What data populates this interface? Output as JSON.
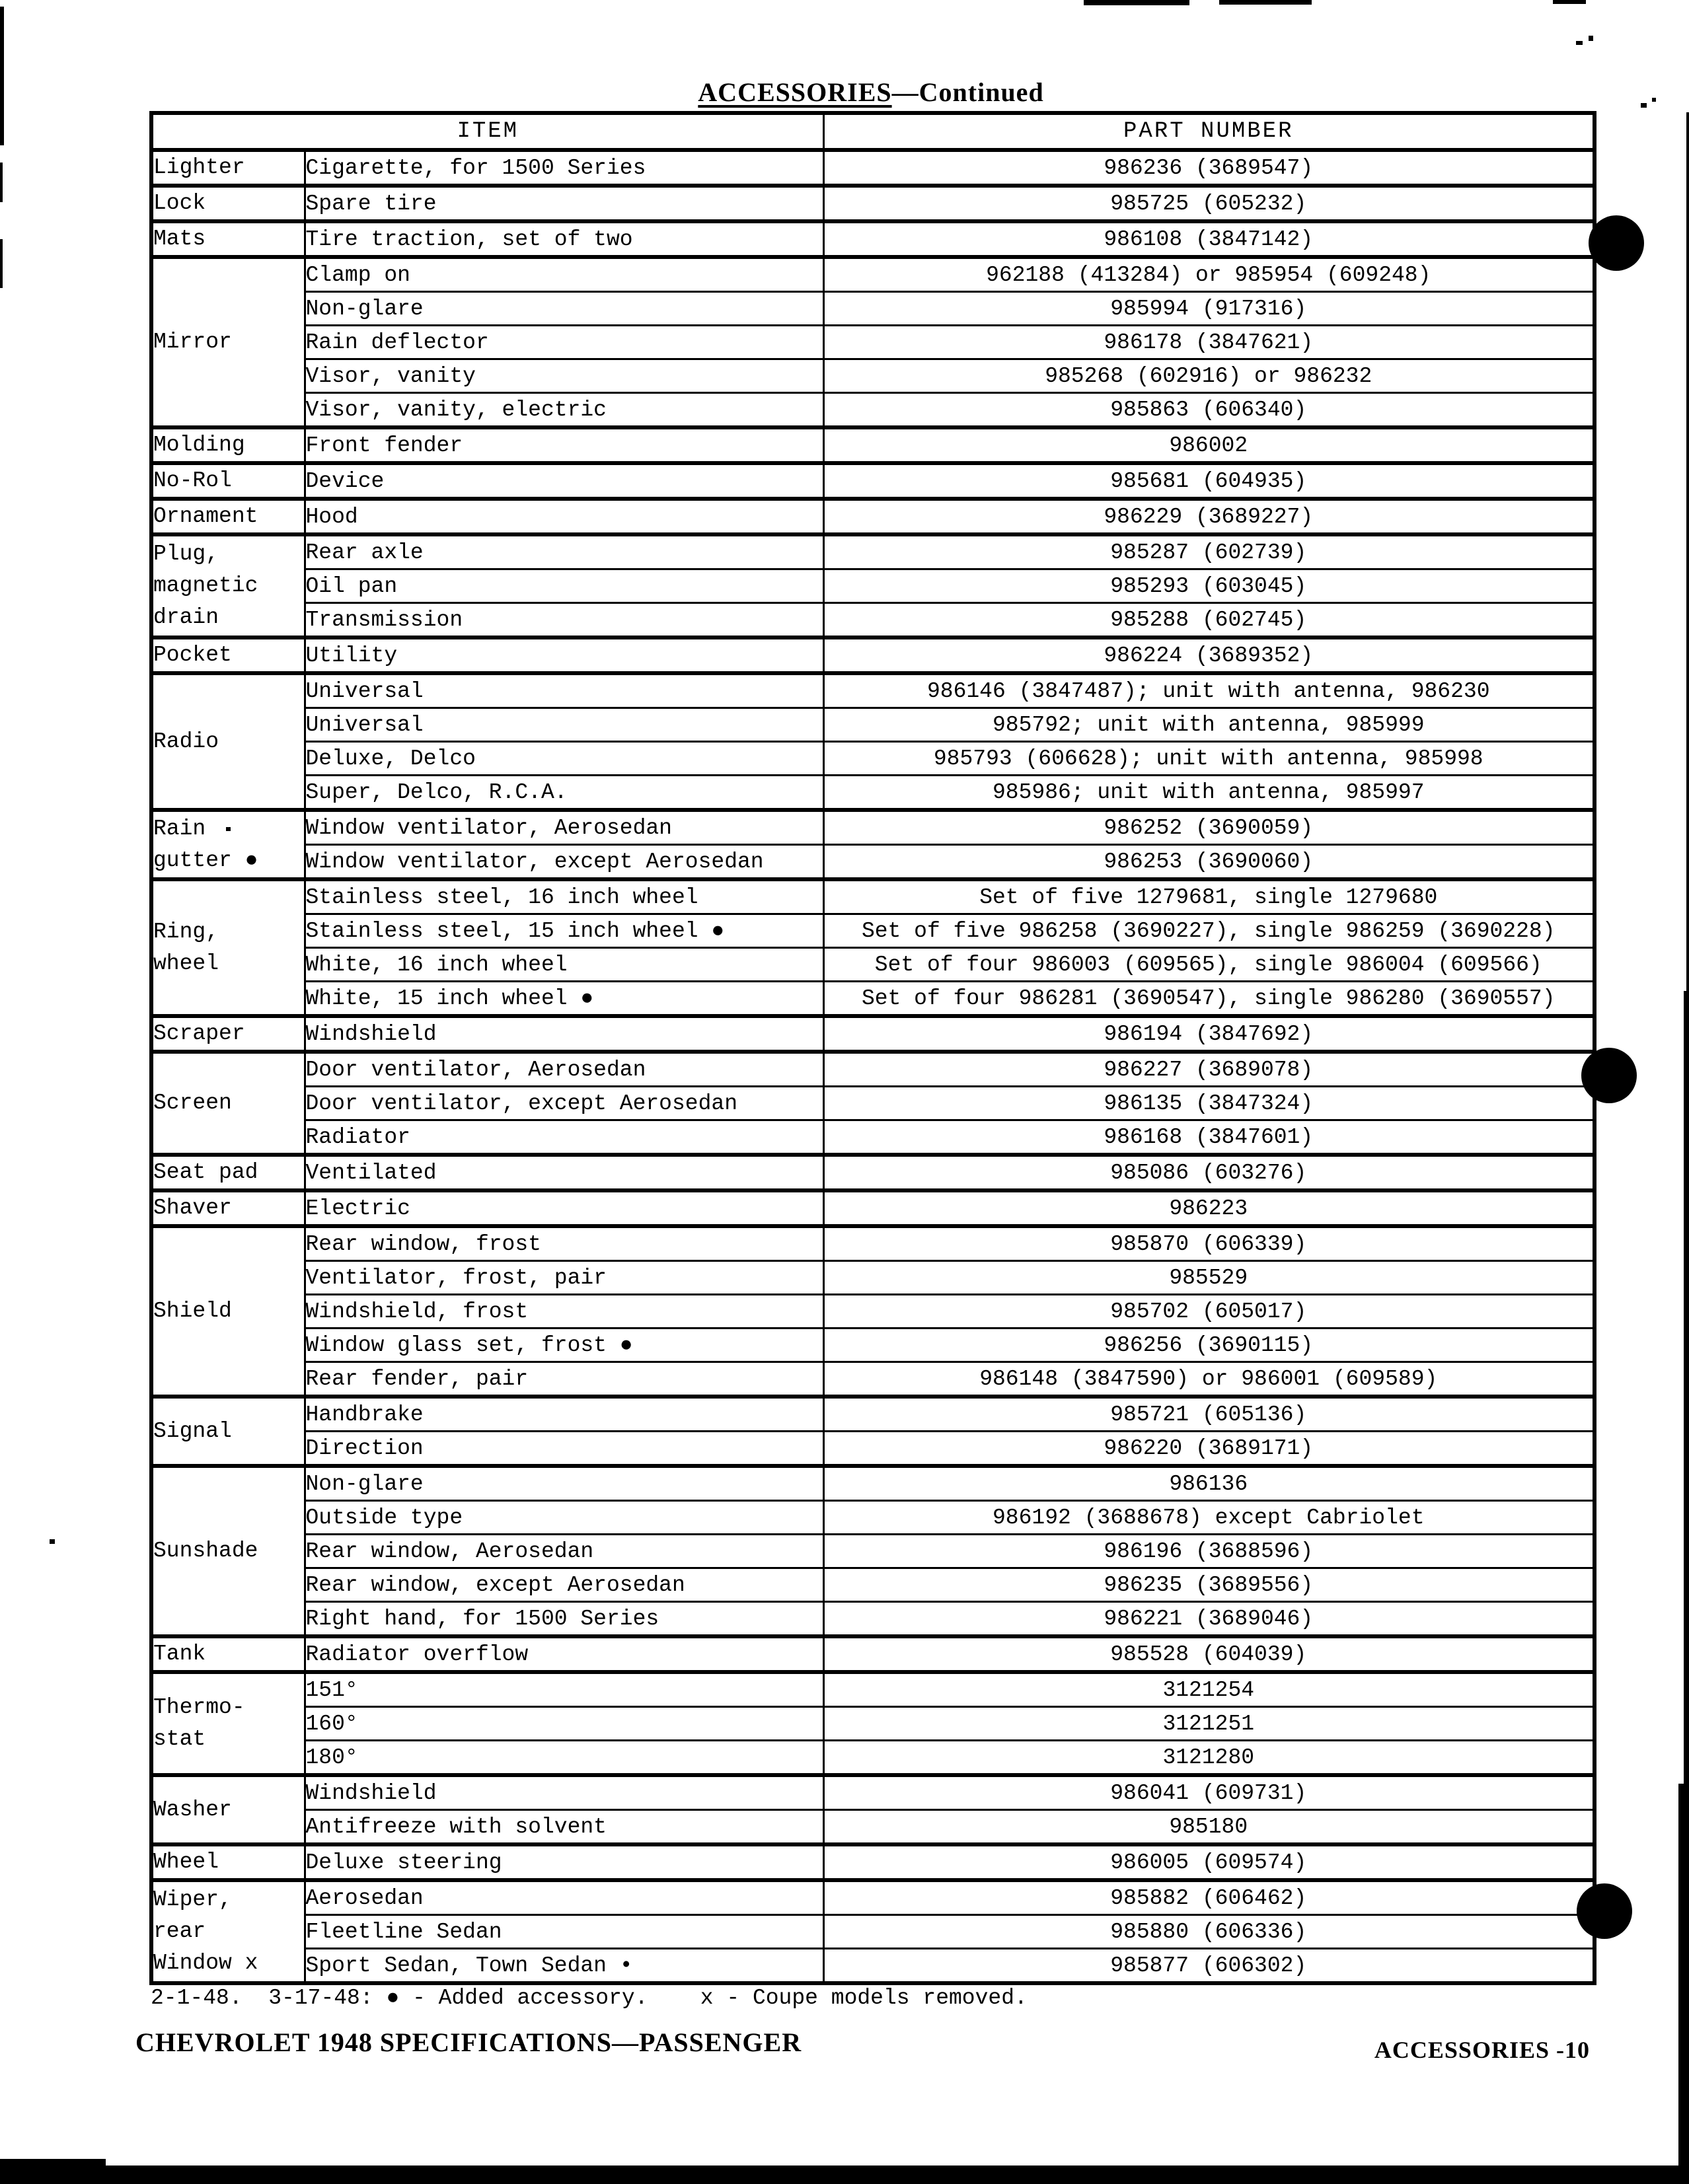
{
  "page": {
    "title_main": "ACCESSORIES",
    "title_suffix": "—Continued",
    "footnote": "2-1-48.  3-17-48: ● - Added accessory.    x - Coupe models removed.",
    "footer_left": "CHEVROLET 1948 SPECIFICATIONS—PASSENGER",
    "footer_right": "ACCESSORIES -10",
    "ink_color": "#000000",
    "paper_color": "#ffffff"
  },
  "table": {
    "headers": [
      "ITEM",
      "PART NUMBER"
    ],
    "groups": [
      {
        "category": [
          "Lighter"
        ],
        "rows": [
          {
            "item": "Cigarette, for 1500 Series",
            "part": "986236 (3689547)"
          }
        ]
      },
      {
        "category": [
          "Lock"
        ],
        "rows": [
          {
            "item": "Spare tire",
            "part": "985725 (605232)"
          }
        ]
      },
      {
        "category": [
          "Mats"
        ],
        "rows": [
          {
            "item": "Tire traction, set of two",
            "part": "986108 (3847142)"
          }
        ]
      },
      {
        "category": [
          "Mirror"
        ],
        "rows": [
          {
            "item": "Clamp on",
            "part": "962188 (413284) or 985954 (609248)"
          },
          {
            "item": "Non-glare",
            "part": "985994 (917316)"
          },
          {
            "item": "Rain deflector",
            "part": "986178 (3847621)"
          },
          {
            "item": "Visor, vanity",
            "part": "985268 (602916) or 986232"
          },
          {
            "item": "Visor, vanity, electric",
            "part": "985863 (606340)"
          }
        ]
      },
      {
        "category": [
          "Molding"
        ],
        "rows": [
          {
            "item": "Front fender",
            "part": "986002"
          }
        ]
      },
      {
        "category": [
          "No-Rol"
        ],
        "rows": [
          {
            "item": "Device",
            "part": "985681 (604935)"
          }
        ]
      },
      {
        "category": [
          "Ornament"
        ],
        "rows": [
          {
            "item": "Hood",
            "part": "986229 (3689227)"
          }
        ]
      },
      {
        "category": [
          "Plug,",
          "magnetic",
          "drain"
        ],
        "rows": [
          {
            "item": "Rear axle",
            "part": "985287 (602739)"
          },
          {
            "item": "Oil pan",
            "part": "985293 (603045)"
          },
          {
            "item": "Transmission",
            "part": "985288 (602745)"
          }
        ]
      },
      {
        "category": [
          "Pocket"
        ],
        "rows": [
          {
            "item": "Utility",
            "part": "986224 (3689352)"
          }
        ]
      },
      {
        "category": [
          "Radio"
        ],
        "rows": [
          {
            "item": "Universal",
            "part": "986146 (3847487); unit with antenna, 986230"
          },
          {
            "item": "Universal",
            "part": "985792; unit with antenna, 985999"
          },
          {
            "item": "Deluxe, Delco",
            "part": "985793 (606628); unit with antenna, 985998"
          },
          {
            "item": "Super, Delco, R.C.A.",
            "part": "985986; unit with antenna, 985997"
          }
        ]
      },
      {
        "category": [
          "Rain",
          "gutter ●"
        ],
        "rows": [
          {
            "item": "Window ventilator, Aerosedan",
            "part": "986252 (3690059)"
          },
          {
            "item": "Window ventilator, except Aerosedan",
            "part": "986253 (3690060)"
          }
        ]
      },
      {
        "category": [
          "Ring,",
          "wheel"
        ],
        "rows": [
          {
            "item": "Stainless steel, 16 inch wheel",
            "part": "Set of five 1279681, single 1279680"
          },
          {
            "item": "Stainless steel, 15 inch wheel ●",
            "part": "Set of five 986258 (3690227), single 986259 (3690228)"
          },
          {
            "item": "White, 16 inch wheel",
            "part": "Set of four 986003 (609565), single 986004 (609566)"
          },
          {
            "item": "White, 15 inch wheel ●",
            "part": "Set of four 986281 (3690547), single 986280 (3690557)"
          }
        ]
      },
      {
        "category": [
          "Scraper"
        ],
        "rows": [
          {
            "item": "Windshield",
            "part": "986194 (3847692)"
          }
        ]
      },
      {
        "category": [
          "Screen"
        ],
        "rows": [
          {
            "item": "Door ventilator, Aerosedan",
            "part": "986227 (3689078)"
          },
          {
            "item": "Door ventilator, except Aerosedan",
            "part": "986135 (3847324)"
          },
          {
            "item": "Radiator",
            "part": "986168 (3847601)"
          }
        ]
      },
      {
        "category": [
          "Seat pad"
        ],
        "rows": [
          {
            "item": "Ventilated",
            "part": "985086 (603276)"
          }
        ]
      },
      {
        "category": [
          "Shaver"
        ],
        "rows": [
          {
            "item": "Electric",
            "part": "986223"
          }
        ]
      },
      {
        "category": [
          "Shield"
        ],
        "rows": [
          {
            "item": "Rear window, frost",
            "part": "985870 (606339)"
          },
          {
            "item": "Ventilator, frost, pair",
            "part": "985529"
          },
          {
            "item": "Windshield, frost",
            "part": "985702 (605017)"
          },
          {
            "item": "Window glass set, frost ●",
            "part": "986256 (3690115)"
          },
          {
            "item": "Rear fender, pair",
            "part": "986148 (3847590) or 986001 (609589)"
          }
        ]
      },
      {
        "category": [
          "Signal"
        ],
        "rows": [
          {
            "item": "Handbrake",
            "part": "985721 (605136)"
          },
          {
            "item": "Direction",
            "part": "986220 (3689171)"
          }
        ]
      },
      {
        "category": [
          "Sunshade"
        ],
        "rows": [
          {
            "item": "Non-glare",
            "part": "986136"
          },
          {
            "item": "Outside type",
            "part": "986192 (3688678) except Cabriolet"
          },
          {
            "item": "Rear window, Aerosedan",
            "part": "986196 (3688596)"
          },
          {
            "item": "Rear window, except Aerosedan",
            "part": "986235 (3689556)"
          },
          {
            "item": "Right hand, for 1500 Series",
            "part": "986221 (3689046)"
          }
        ]
      },
      {
        "category": [
          "Tank"
        ],
        "rows": [
          {
            "item": "Radiator overflow",
            "part": "985528 (604039)"
          }
        ]
      },
      {
        "category": [
          "Thermo-",
          "stat"
        ],
        "rows": [
          {
            "item": "151°",
            "part": "3121254"
          },
          {
            "item": "160°",
            "part": "3121251"
          },
          {
            "item": "180°",
            "part": "3121280"
          }
        ]
      },
      {
        "category": [
          "Washer"
        ],
        "rows": [
          {
            "item": "Windshield",
            "part": "986041 (609731)"
          },
          {
            "item": "Antifreeze with solvent",
            "part": "985180"
          }
        ]
      },
      {
        "category": [
          "Wheel"
        ],
        "rows": [
          {
            "item": "Deluxe steering",
            "part": "986005 (609574)"
          }
        ]
      },
      {
        "category": [
          "Wiper,",
          "rear",
          "Window x"
        ],
        "rows": [
          {
            "item": "Aerosedan",
            "part": "985882 (606462)"
          },
          {
            "item": "Fleetline Sedan",
            "part": "985880 (606336)"
          },
          {
            "item": "Sport Sedan, Town Sedan •",
            "part": "985877 (606302)"
          }
        ]
      }
    ]
  }
}
